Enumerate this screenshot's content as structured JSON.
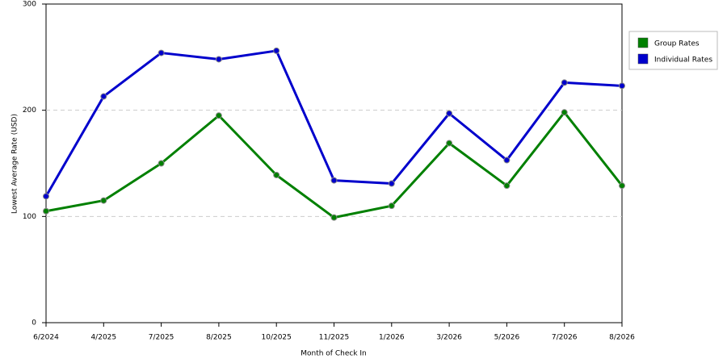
{
  "chart_data": {
    "type": "line",
    "x_label": "Month of Check In",
    "y_label": "Lowest Average Rate (USD)",
    "categories": [
      "6/2024",
      "4/2025",
      "7/2025",
      "8/2025",
      "10/2025",
      "11/2025",
      "1/2026",
      "3/2026",
      "5/2026",
      "7/2026",
      "8/2026"
    ],
    "series": [
      {
        "name": "Group Rates",
        "color": "#008000",
        "values": [
          105,
          115,
          150,
          195,
          139,
          99,
          110,
          169,
          129,
          198,
          129
        ]
      },
      {
        "name": "Individual Rates",
        "color": "#0000cc",
        "values": [
          119,
          213,
          254,
          248,
          256,
          134,
          131,
          197,
          153,
          226,
          223
        ]
      }
    ],
    "ylim": [
      0,
      300
    ],
    "yticks": [
      0,
      100,
      200,
      300
    ],
    "grid": true,
    "legend": "right"
  }
}
